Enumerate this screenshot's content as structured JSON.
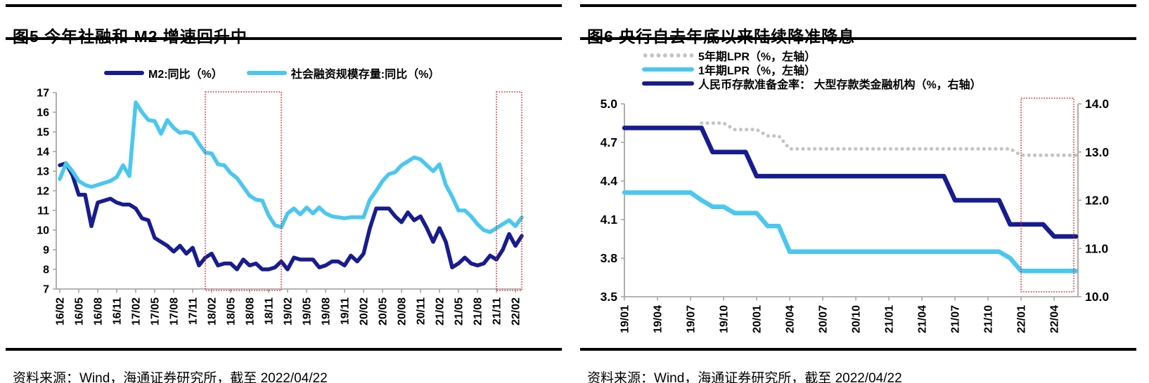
{
  "colors": {
    "navy": "#171c8f",
    "cyan": "#4ac7f0",
    "gray_dotted": "#c4c4c4",
    "axis": "#9b9b9b",
    "highlight_box": "#e02020",
    "text": "#000000"
  },
  "panels": [
    {
      "title": "图5  今年社融和 M2 增速回升中",
      "source": "资料来源：Wind，海通证券研究所，截至 2022/04/22"
    },
    {
      "title": "图6  央行自去年底以来陆续降准降息",
      "source": "资料来源：Wind，海通证券研究所，截至 2022/04/22"
    }
  ],
  "chart_data": [
    {
      "type": "line",
      "title": "今年社融和M2增速回升中",
      "xlabel": "",
      "ylabel": "",
      "ylim": [
        7,
        17
      ],
      "yticks": [
        "7",
        "8",
        "9",
        "10",
        "11",
        "12",
        "13",
        "14",
        "15",
        "16",
        "17"
      ],
      "xtick_every": 3,
      "grid": false,
      "legend_position": "top-center",
      "x": [
        "16/02",
        "16/03",
        "16/04",
        "16/05",
        "16/06",
        "16/07",
        "16/08",
        "16/09",
        "16/10",
        "16/11",
        "16/12",
        "17/01",
        "17/02",
        "17/03",
        "17/04",
        "17/05",
        "17/06",
        "17/07",
        "17/08",
        "17/09",
        "17/10",
        "17/11",
        "17/12",
        "18/01",
        "18/02",
        "18/03",
        "18/04",
        "18/05",
        "18/06",
        "18/07",
        "18/08",
        "18/09",
        "18/10",
        "18/11",
        "18/12",
        "19/01",
        "19/02",
        "19/03",
        "19/04",
        "19/05",
        "19/06",
        "19/07",
        "19/08",
        "19/09",
        "19/10",
        "19/11",
        "19/12",
        "20/01",
        "20/02",
        "20/03",
        "20/04",
        "20/05",
        "20/06",
        "20/07",
        "20/08",
        "20/09",
        "20/10",
        "20/11",
        "20/12",
        "21/01",
        "21/02",
        "21/03",
        "21/04",
        "21/05",
        "21/06",
        "21/07",
        "21/08",
        "21/09",
        "21/10",
        "21/11",
        "21/12",
        "22/01",
        "22/02",
        "22/03"
      ],
      "series": [
        {
          "name": "M2:同比（%）",
          "color": "#171c8f",
          "style": "solid",
          "width": 5.5,
          "values": [
            13.3,
            13.4,
            12.8,
            11.8,
            11.8,
            10.2,
            11.4,
            11.5,
            11.6,
            11.4,
            11.3,
            11.3,
            11.1,
            10.6,
            10.5,
            9.6,
            9.4,
            9.2,
            8.9,
            9.2,
            8.8,
            9.1,
            8.2,
            8.6,
            8.8,
            8.2,
            8.3,
            8.3,
            8.0,
            8.5,
            8.2,
            8.3,
            8.0,
            8.0,
            8.1,
            8.4,
            8.0,
            8.6,
            8.5,
            8.5,
            8.5,
            8.1,
            8.2,
            8.4,
            8.4,
            8.2,
            8.7,
            8.4,
            8.8,
            10.1,
            11.1,
            11.1,
            11.1,
            10.7,
            10.4,
            10.9,
            10.5,
            10.7,
            10.1,
            9.4,
            10.1,
            9.4,
            8.1,
            8.3,
            8.6,
            8.3,
            8.2,
            8.3,
            8.7,
            8.5,
            9.0,
            9.8,
            9.2,
            9.7
          ]
        },
        {
          "name": "社会融资规模存量:同比（%）",
          "color": "#4ac7f0",
          "style": "solid",
          "width": 5.5,
          "values": [
            12.6,
            13.4,
            13.0,
            12.5,
            12.3,
            12.2,
            12.3,
            12.4,
            12.5,
            12.7,
            13.3,
            12.75,
            16.5,
            16.0,
            15.6,
            15.55,
            14.9,
            15.6,
            15.2,
            14.95,
            15.0,
            14.9,
            14.4,
            13.95,
            13.9,
            13.35,
            13.3,
            12.9,
            12.65,
            12.2,
            11.75,
            11.55,
            11.5,
            10.75,
            10.25,
            10.15,
            10.85,
            11.1,
            10.8,
            11.15,
            10.85,
            11.15,
            10.85,
            10.7,
            10.65,
            10.6,
            10.65,
            10.65,
            10.65,
            11.55,
            12.0,
            12.5,
            12.85,
            12.95,
            13.3,
            13.5,
            13.7,
            13.6,
            13.3,
            13.0,
            13.35,
            12.3,
            11.7,
            11.0,
            11.0,
            10.7,
            10.3,
            10.0,
            9.9,
            10.1,
            10.3,
            10.5,
            10.2,
            10.65
          ]
        }
      ],
      "highlight_boxes": [
        {
          "from": "18/01",
          "to": "19/01"
        },
        {
          "from": "21/11",
          "to": "22/03"
        }
      ]
    },
    {
      "type": "line",
      "title": "央行自去年底以来陆续降准降息",
      "xlabel": "",
      "ylim_left": [
        3.5,
        5.0
      ],
      "yticks_left": [
        "3.5",
        "3.8",
        "4.1",
        "4.4",
        "4.7",
        "5.0"
      ],
      "ylim_right": [
        10.0,
        14.0
      ],
      "yticks_right": [
        "10.0",
        "11.0",
        "12.0",
        "13.0",
        "14.0"
      ],
      "xtick_every": 3,
      "grid": false,
      "legend_position": "top-left",
      "x": [
        "19/01",
        "19/02",
        "19/03",
        "19/04",
        "19/05",
        "19/06",
        "19/07",
        "19/08",
        "19/09",
        "19/10",
        "19/11",
        "19/12",
        "20/01",
        "20/02",
        "20/03",
        "20/04",
        "20/05",
        "20/06",
        "20/07",
        "20/08",
        "20/09",
        "20/10",
        "20/11",
        "20/12",
        "21/01",
        "21/02",
        "21/03",
        "21/04",
        "21/05",
        "21/06",
        "21/07",
        "21/08",
        "21/09",
        "21/10",
        "21/11",
        "21/12",
        "22/01",
        "22/02",
        "22/03",
        "22/04"
      ],
      "series": [
        {
          "name": "5年期LPR（%，左轴）",
          "axis": "left",
          "color": "#c4c4c4",
          "style": "dotted",
          "width": 5,
          "values": [
            null,
            null,
            null,
            null,
            null,
            null,
            null,
            4.85,
            4.85,
            4.85,
            4.8,
            4.8,
            4.8,
            4.75,
            4.75,
            4.65,
            4.65,
            4.65,
            4.65,
            4.65,
            4.65,
            4.65,
            4.65,
            4.65,
            4.65,
            4.65,
            4.65,
            4.65,
            4.65,
            4.65,
            4.65,
            4.65,
            4.65,
            4.65,
            4.65,
            4.65,
            4.6,
            4.6,
            4.6,
            4.6
          ]
        },
        {
          "name": "1年期LPR（%，左轴）",
          "axis": "left",
          "color": "#4ac7f0",
          "style": "solid",
          "width": 6.5,
          "values": [
            4.31,
            4.31,
            4.31,
            4.31,
            4.31,
            4.31,
            4.31,
            4.25,
            4.2,
            4.2,
            4.15,
            4.15,
            4.15,
            4.05,
            4.05,
            3.85,
            3.85,
            3.85,
            3.85,
            3.85,
            3.85,
            3.85,
            3.85,
            3.85,
            3.85,
            3.85,
            3.85,
            3.85,
            3.85,
            3.85,
            3.85,
            3.85,
            3.85,
            3.85,
            3.85,
            3.8,
            3.7,
            3.7,
            3.7,
            3.7
          ]
        },
        {
          "name": "人民币存款准备金率： 大型存款类金融机构（%，右轴）",
          "axis": "right",
          "color": "#171c8f",
          "style": "solid",
          "width": 6.5,
          "values": [
            13.5,
            13.5,
            13.5,
            13.5,
            13.5,
            13.5,
            13.5,
            13.5,
            13.0,
            13.0,
            13.0,
            13.0,
            12.5,
            12.5,
            12.5,
            12.5,
            12.5,
            12.5,
            12.5,
            12.5,
            12.5,
            12.5,
            12.5,
            12.5,
            12.5,
            12.5,
            12.5,
            12.5,
            12.5,
            12.5,
            12.0,
            12.0,
            12.0,
            12.0,
            12.0,
            11.5,
            11.5,
            11.5,
            11.5,
            11.25
          ]
        }
      ],
      "highlight_boxes": [
        {
          "from": "22/01",
          "to": "22/04"
        }
      ]
    }
  ]
}
